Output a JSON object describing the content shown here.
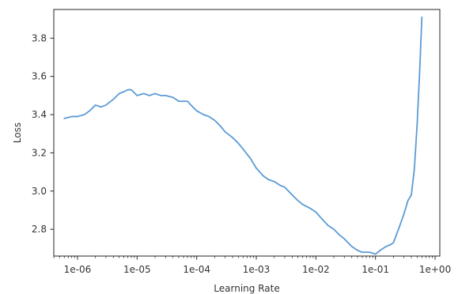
{
  "colors": {
    "line": "#5b9bd5",
    "axes": "#262626"
  },
  "chart_data": {
    "type": "line",
    "title": "",
    "xlabel": "Learning Rate",
    "ylabel": "Loss",
    "x_scale": "log",
    "xlim": [
      4e-07,
      1.2
    ],
    "ylim": [
      2.66,
      3.95
    ],
    "grid": false,
    "x_ticks": [
      {
        "value": 1e-06,
        "label": "1e-06"
      },
      {
        "value": 1e-05,
        "label": "1e-05"
      },
      {
        "value": 0.0001,
        "label": "1e-04"
      },
      {
        "value": 0.001,
        "label": "1e-03"
      },
      {
        "value": 0.01,
        "label": "1e-02"
      },
      {
        "value": 0.1,
        "label": "1e-01"
      },
      {
        "value": 1,
        "label": "1e+00"
      }
    ],
    "y_ticks": [
      {
        "value": 2.8,
        "label": "2.8"
      },
      {
        "value": 3.0,
        "label": "3.0"
      },
      {
        "value": 3.2,
        "label": "3.2"
      },
      {
        "value": 3.4,
        "label": "3.4"
      },
      {
        "value": 3.6,
        "label": "3.6"
      },
      {
        "value": 3.8,
        "label": "3.8"
      }
    ],
    "series": [
      {
        "x": [
          6e-07,
          8e-07,
          1e-06,
          1.3e-06,
          1.6e-06,
          2e-06,
          2.5e-06,
          3e-06,
          4e-06,
          5e-06,
          6e-06,
          7e-06,
          8e-06,
          1e-05,
          1.3e-05,
          1.6e-05,
          2e-05,
          2.5e-05,
          3e-05,
          4e-05,
          5e-05,
          6e-05,
          7e-05,
          8e-05,
          0.0001,
          0.00013,
          0.00016,
          0.0002,
          0.00025,
          0.0003,
          0.0004,
          0.0005,
          0.0006,
          0.0008,
          0.001,
          0.0013,
          0.0016,
          0.002,
          0.0025,
          0.003,
          0.004,
          0.005,
          0.006,
          0.008,
          0.01,
          0.013,
          0.016,
          0.02,
          0.025,
          0.03,
          0.04,
          0.05,
          0.06,
          0.08,
          0.1,
          0.12,
          0.15,
          0.18,
          0.2,
          0.25,
          0.3,
          0.35,
          0.4,
          0.45,
          0.5,
          0.55,
          0.6
        ],
        "values": [
          3.38,
          3.39,
          3.39,
          3.4,
          3.42,
          3.45,
          3.44,
          3.45,
          3.48,
          3.51,
          3.52,
          3.53,
          3.53,
          3.5,
          3.51,
          3.5,
          3.51,
          3.5,
          3.5,
          3.49,
          3.47,
          3.47,
          3.47,
          3.45,
          3.42,
          3.4,
          3.39,
          3.37,
          3.34,
          3.31,
          3.28,
          3.25,
          3.22,
          3.17,
          3.12,
          3.08,
          3.06,
          3.05,
          3.03,
          3.02,
          2.98,
          2.95,
          2.93,
          2.91,
          2.89,
          2.85,
          2.82,
          2.8,
          2.77,
          2.75,
          2.71,
          2.69,
          2.68,
          2.68,
          2.67,
          2.69,
          2.71,
          2.72,
          2.73,
          2.81,
          2.88,
          2.95,
          2.98,
          3.12,
          3.35,
          3.62,
          3.91
        ]
      }
    ]
  }
}
